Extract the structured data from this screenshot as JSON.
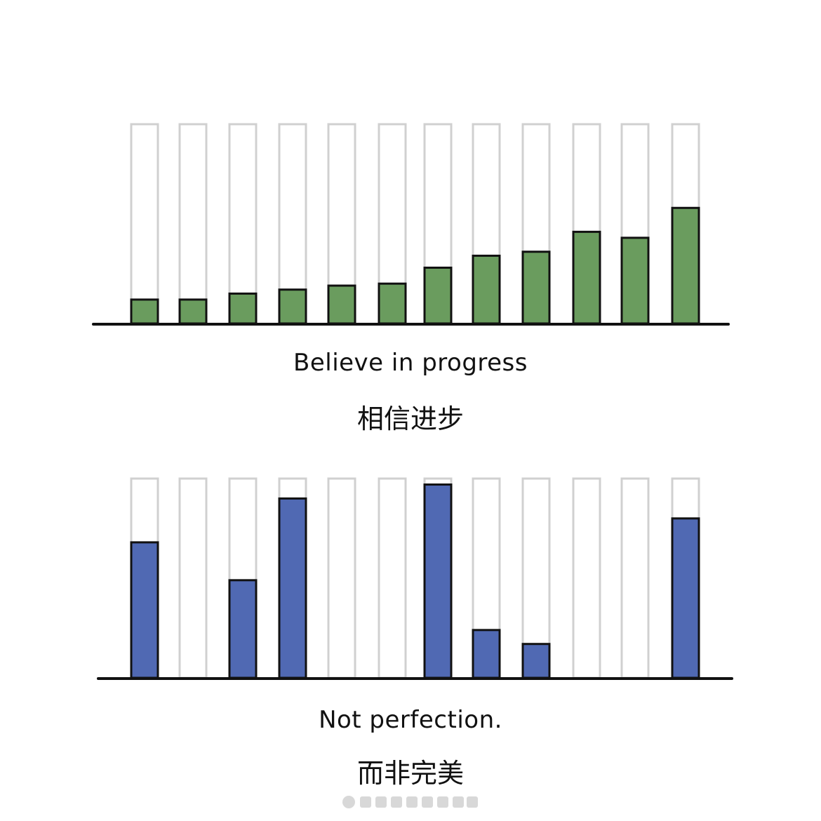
{
  "chart_data": [
    {
      "type": "bar",
      "ylim": [
        0,
        100
      ],
      "values": [
        12,
        12,
        15,
        17,
        19,
        20,
        28,
        34,
        36,
        46,
        43,
        58
      ],
      "caption_en": "Believe in progress",
      "caption_zh": "相信进步",
      "colors": {
        "fill": "#6a9c5e",
        "frame": "#d0d0d0",
        "stroke": "#111111"
      }
    },
    {
      "type": "bar",
      "ylim": [
        0,
        100
      ],
      "values": [
        68,
        0,
        49,
        90,
        0,
        0,
        97,
        24,
        17,
        0,
        0,
        80
      ],
      "caption_en": "Not perfection.",
      "caption_zh": "而非完美",
      "colors": {
        "fill": "#5069b3",
        "frame": "#d0d0d0",
        "stroke": "#111111"
      }
    }
  ]
}
